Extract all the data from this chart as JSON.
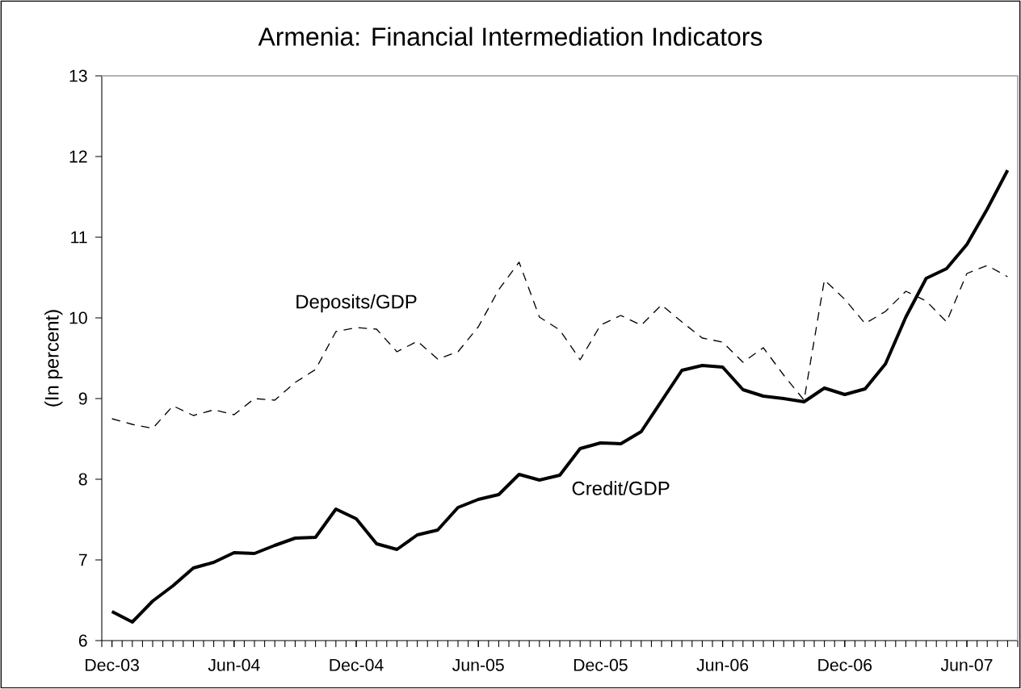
{
  "chart_data": {
    "type": "line",
    "title": "Armenia: Financial Intermediation Indicators",
    "ylabel": "(In percent)",
    "categories": [
      "Dec-03",
      null,
      null,
      null,
      null,
      null,
      "Jun-04",
      null,
      null,
      null,
      null,
      null,
      "Dec-04",
      null,
      null,
      null,
      null,
      null,
      "Jun-05",
      null,
      null,
      null,
      null,
      null,
      "Dec-05",
      null,
      null,
      null,
      null,
      null,
      "Jun-06",
      null,
      null,
      null,
      null,
      null,
      "Dec-06",
      null,
      null,
      null,
      null,
      null,
      "Jun-07",
      null,
      null
    ],
    "series": [
      {
        "name": "Deposits/GDP",
        "color": "#000000",
        "line_style": "dashed",
        "values": [
          8.75,
          8.68,
          8.63,
          8.91,
          8.79,
          8.86,
          8.8,
          9.0,
          8.98,
          9.2,
          9.36,
          9.83,
          9.88,
          9.86,
          9.58,
          9.71,
          9.49,
          9.58,
          9.89,
          10.35,
          10.69,
          10.01,
          9.85,
          9.48,
          9.91,
          10.03,
          9.91,
          10.16,
          9.95,
          9.75,
          9.7,
          9.45,
          9.63,
          9.29,
          8.98,
          10.47,
          10.23,
          9.93,
          10.08,
          10.33,
          10.21,
          9.95,
          10.55,
          10.65,
          10.51
        ]
      },
      {
        "name": "Credit/GDP",
        "color": "#000000",
        "line_style": "solid",
        "values": [
          6.36,
          6.23,
          6.49,
          6.68,
          6.9,
          6.97,
          7.09,
          7.08,
          7.18,
          7.27,
          7.28,
          7.63,
          7.51,
          7.2,
          7.13,
          7.31,
          7.37,
          7.65,
          7.75,
          7.81,
          8.06,
          7.99,
          8.05,
          8.38,
          8.45,
          8.44,
          8.59,
          8.97,
          9.35,
          9.41,
          9.39,
          9.11,
          9.03,
          9.0,
          8.96,
          9.13,
          9.05,
          9.12,
          9.43,
          10.01,
          10.49,
          10.61,
          10.91,
          11.35,
          11.83
        ]
      }
    ],
    "ylim": [
      6,
      13
    ],
    "yticks": [
      6,
      7,
      8,
      9,
      10,
      11,
      12,
      13
    ],
    "grid": false,
    "legend": false,
    "marker": "none"
  }
}
